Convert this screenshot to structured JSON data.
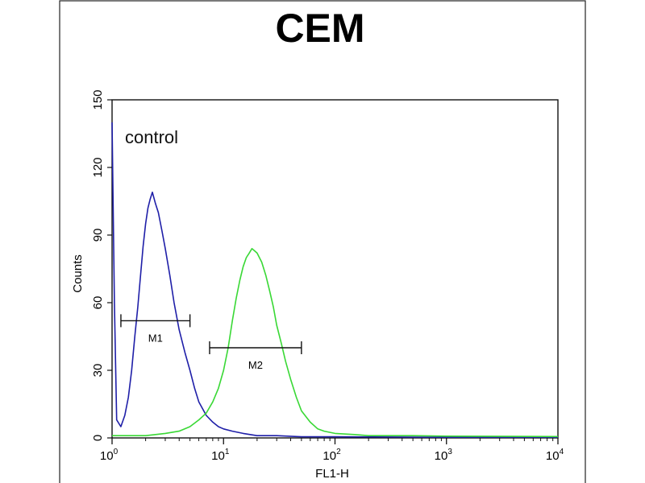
{
  "chart_data": {
    "type": "histogram",
    "title": "CEM",
    "xlabel": "FL1-H",
    "ylabel": "Counts",
    "x_scale": "log",
    "xlim": [
      1,
      10000
    ],
    "ylim": [
      0,
      150
    ],
    "x_ticks": [
      {
        "base": "10",
        "exp": "0",
        "value": 1
      },
      {
        "base": "10",
        "exp": "1",
        "value": 10
      },
      {
        "base": "10",
        "exp": "2",
        "value": 100
      },
      {
        "base": "10",
        "exp": "3",
        "value": 1000
      },
      {
        "base": "10",
        "exp": "4",
        "value": 10000
      }
    ],
    "y_ticks": [
      "0",
      "30",
      "60",
      "90",
      "120",
      "150"
    ],
    "annotation": "control",
    "grid": false,
    "series": [
      {
        "color": "#1f1fa8",
        "points": [
          [
            1.0,
            140
          ],
          [
            1.05,
            60
          ],
          [
            1.1,
            8
          ],
          [
            1.2,
            5
          ],
          [
            1.3,
            10
          ],
          [
            1.4,
            18
          ],
          [
            1.5,
            30
          ],
          [
            1.6,
            45
          ],
          [
            1.7,
            58
          ],
          [
            1.8,
            72
          ],
          [
            1.9,
            85
          ],
          [
            2.0,
            95
          ],
          [
            2.1,
            102
          ],
          [
            2.2,
            106
          ],
          [
            2.3,
            109
          ],
          [
            2.45,
            104
          ],
          [
            2.6,
            100
          ],
          [
            2.8,
            92
          ],
          [
            3.0,
            84
          ],
          [
            3.3,
            72
          ],
          [
            3.6,
            60
          ],
          [
            4.0,
            48
          ],
          [
            4.5,
            38
          ],
          [
            5.0,
            30
          ],
          [
            5.5,
            22
          ],
          [
            6.0,
            16
          ],
          [
            7.0,
            10
          ],
          [
            8.0,
            7
          ],
          [
            9.0,
            5
          ],
          [
            10,
            4
          ],
          [
            12,
            3
          ],
          [
            15,
            2
          ],
          [
            20,
            1
          ],
          [
            30,
            1
          ],
          [
            50,
            0.5
          ],
          [
            100,
            0.5
          ],
          [
            1000,
            0.3
          ],
          [
            10000,
            0.3
          ]
        ]
      },
      {
        "color": "#39d835",
        "points": [
          [
            1.0,
            1
          ],
          [
            1.5,
            1
          ],
          [
            2.0,
            1
          ],
          [
            3.0,
            2
          ],
          [
            4.0,
            3
          ],
          [
            5.0,
            5
          ],
          [
            6.0,
            8
          ],
          [
            7.0,
            11
          ],
          [
            8.0,
            16
          ],
          [
            9.0,
            22
          ],
          [
            10,
            30
          ],
          [
            11,
            40
          ],
          [
            12,
            52
          ],
          [
            13,
            62
          ],
          [
            14,
            70
          ],
          [
            15,
            76
          ],
          [
            16,
            80
          ],
          [
            17,
            82
          ],
          [
            18,
            84
          ],
          [
            19,
            83
          ],
          [
            20,
            82
          ],
          [
            22,
            78
          ],
          [
            24,
            72
          ],
          [
            26,
            65
          ],
          [
            28,
            58
          ],
          [
            30,
            50
          ],
          [
            33,
            42
          ],
          [
            36,
            34
          ],
          [
            40,
            26
          ],
          [
            45,
            18
          ],
          [
            50,
            12
          ],
          [
            60,
            7
          ],
          [
            70,
            4
          ],
          [
            80,
            3
          ],
          [
            100,
            2
          ],
          [
            150,
            1.5
          ],
          [
            200,
            1
          ],
          [
            500,
            1
          ],
          [
            1000,
            0.8
          ],
          [
            10000,
            0.6
          ]
        ]
      }
    ],
    "markers": [
      {
        "label": "M1",
        "from": 1.2,
        "to": 5.0,
        "y": 52
      },
      {
        "label": "M2",
        "from": 7.5,
        "to": 50,
        "y": 40
      }
    ]
  }
}
